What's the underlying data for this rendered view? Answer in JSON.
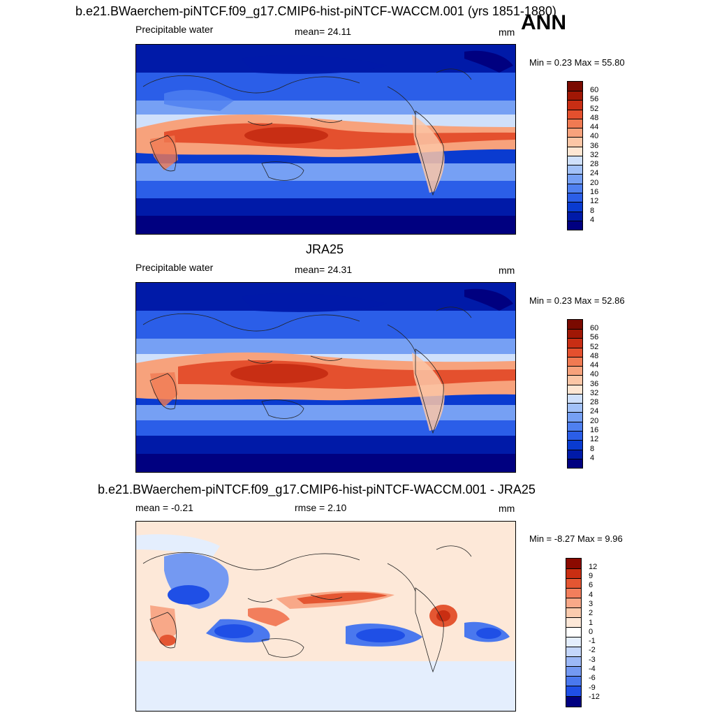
{
  "season": "ANN",
  "panel1": {
    "title": "b.e21.BWaerchem-piNTCF.f09_g17.CMIP6-hist-piNTCF-WACCM.001 (yrs 1851-1880)",
    "variable": "Precipitable water",
    "mean_text": "mean=  24.11",
    "units": "mm",
    "minmax_text": "Min =   0.23 Max =  55.80",
    "colorbar_labels": [
      "60",
      "56",
      "52",
      "48",
      "44",
      "40",
      "36",
      "32",
      "28",
      "24",
      "20",
      "16",
      "12",
      "8",
      "4"
    ]
  },
  "panel2": {
    "title": "JRA25",
    "variable": "Precipitable water",
    "mean_text": "mean=  24.31",
    "units": "mm",
    "minmax_text": "Min =   0.23 Max =  52.86",
    "colorbar_labels": [
      "60",
      "56",
      "52",
      "48",
      "44",
      "40",
      "36",
      "32",
      "28",
      "24",
      "20",
      "16",
      "12",
      "8",
      "4"
    ]
  },
  "panel3": {
    "title": "b.e21.BWaerchem-piNTCF.f09_g17.CMIP6-hist-piNTCF-WACCM.001 - JRA25",
    "mean_text": "mean =  -0.21",
    "rmse_text": "rmse =    2.10",
    "units": "mm",
    "minmax_text": "Min =  -8.27 Max =   9.96",
    "colorbar_labels": [
      "12",
      "9",
      "6",
      "4",
      "3",
      "2",
      "1",
      "0",
      "-1",
      "-2",
      "-3",
      "-4",
      "-6",
      "-9",
      "-12"
    ]
  },
  "colors": {
    "seq": [
      "#000080",
      "#001aa8",
      "#0a3bd0",
      "#2b5ee8",
      "#4f80f0",
      "#76a0f4",
      "#a2c1f8",
      "#cfe0fb",
      "#fde6d3",
      "#fbc6a6",
      "#f7a27c",
      "#f07a52",
      "#e4502e",
      "#c82e14",
      "#a01705",
      "#7a0a00"
    ],
    "div": [
      "#000080",
      "#0a2cc4",
      "#1f4fe6",
      "#4a78ee",
      "#7499f2",
      "#9cb8f6",
      "#c4d6fa",
      "#e4eefd",
      "#fde8d8",
      "#fbcbae",
      "#f8a888",
      "#f27e5c",
      "#e45632",
      "#c92e12",
      "#8b0a00"
    ]
  }
}
